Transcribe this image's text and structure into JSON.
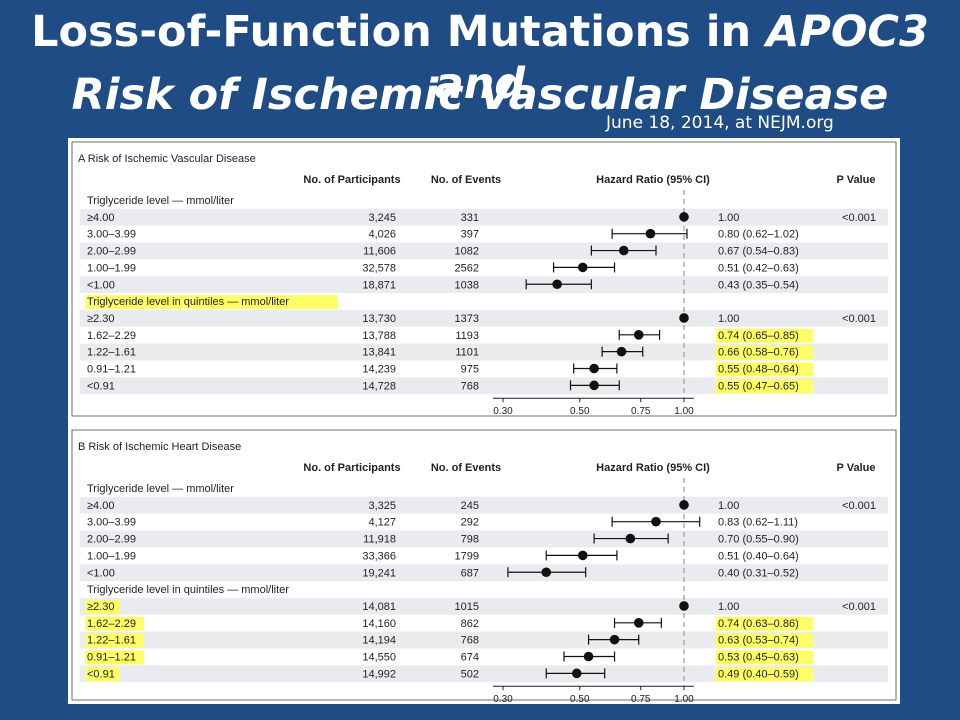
{
  "slide": {
    "title_line1_plain": "Loss-of-Function Mutations in ",
    "title_line1_italic": "APOC3 and",
    "title_line2_italic": "Risk of Ischemic Vascular Disease",
    "source": "June 18, 2014, at NEJM.org"
  },
  "colors": {
    "background": "#1f4c85",
    "highlight": "#ffff66",
    "stripe": "#e9ebee"
  },
  "chart_data": [
    {
      "type": "forest",
      "panel_title": "A  Risk of Ischemic Vascular Disease",
      "columns": {
        "participants": "No. of Participants",
        "events": "No. of Events",
        "hr": "Hazard Ratio (95% CI)",
        "p": "P Value"
      },
      "x_scale": "log",
      "xlim": [
        0.3,
        1.0
      ],
      "ticks": [
        0.3,
        0.5,
        0.75,
        1.0
      ],
      "tick_labels": [
        "0.30",
        "0.50",
        "0.75",
        "1.00"
      ],
      "groups": [
        {
          "label": "Triglyceride level — mmol/liter",
          "highlight": false,
          "rows": [
            {
              "category": "≥4.00",
              "participants": "3,245",
              "events": "331",
              "hr": 1.0,
              "lo": 1.0,
              "hi": 1.0,
              "hr_text": "1.00",
              "p": "<0.001",
              "hl_cat": false,
              "hl_hr": false
            },
            {
              "category": "3.00–3.99",
              "participants": "4,026",
              "events": "397",
              "hr": 0.8,
              "lo": 0.62,
              "hi": 1.02,
              "hr_text": "0.80 (0.62–1.02)",
              "p": "",
              "hl_cat": false,
              "hl_hr": false
            },
            {
              "category": "2.00–2.99",
              "participants": "11,606",
              "events": "1082",
              "hr": 0.67,
              "lo": 0.54,
              "hi": 0.83,
              "hr_text": "0.67 (0.54–0.83)",
              "p": "",
              "hl_cat": false,
              "hl_hr": false
            },
            {
              "category": "1.00–1.99",
              "participants": "32,578",
              "events": "2562",
              "hr": 0.51,
              "lo": 0.42,
              "hi": 0.63,
              "hr_text": "0.51 (0.42–0.63)",
              "p": "",
              "hl_cat": false,
              "hl_hr": false
            },
            {
              "category": "<1.00",
              "participants": "18,871",
              "events": "1038",
              "hr": 0.43,
              "lo": 0.35,
              "hi": 0.54,
              "hr_text": "0.43 (0.35–0.54)",
              "p": "",
              "hl_cat": false,
              "hl_hr": false
            }
          ]
        },
        {
          "label": "Triglyceride level in quintiles — mmol/liter",
          "highlight": true,
          "rows": [
            {
              "category": "≥2.30",
              "participants": "13,730",
              "events": "1373",
              "hr": 1.0,
              "lo": 1.0,
              "hi": 1.0,
              "hr_text": "1.00",
              "p": "<0.001",
              "hl_cat": false,
              "hl_hr": false
            },
            {
              "category": "1.62–2.29",
              "participants": "13,788",
              "events": "1193",
              "hr": 0.74,
              "lo": 0.65,
              "hi": 0.85,
              "hr_text": "0.74 (0.65–0.85)",
              "p": "",
              "hl_cat": false,
              "hl_hr": true
            },
            {
              "category": "1.22–1.61",
              "participants": "13,841",
              "events": "1101",
              "hr": 0.66,
              "lo": 0.58,
              "hi": 0.76,
              "hr_text": "0.66 (0.58–0.76)",
              "p": "",
              "hl_cat": false,
              "hl_hr": true
            },
            {
              "category": "0.91–1.21",
              "participants": "14,239",
              "events": "975",
              "hr": 0.55,
              "lo": 0.48,
              "hi": 0.64,
              "hr_text": "0.55 (0.48–0.64)",
              "p": "",
              "hl_cat": false,
              "hl_hr": true
            },
            {
              "category": "<0.91",
              "participants": "14,728",
              "events": "768",
              "hr": 0.55,
              "lo": 0.47,
              "hi": 0.65,
              "hr_text": "0.55 (0.47–0.65)",
              "p": "",
              "hl_cat": false,
              "hl_hr": true
            }
          ]
        }
      ]
    },
    {
      "type": "forest",
      "panel_title": "B  Risk of Ischemic Heart Disease",
      "columns": {
        "participants": "No. of Participants",
        "events": "No. of Events",
        "hr": "Hazard Ratio (95% CI)",
        "p": "P Value"
      },
      "x_scale": "log",
      "xlim": [
        0.3,
        1.0
      ],
      "ticks": [
        0.3,
        0.5,
        0.75,
        1.0
      ],
      "tick_labels": [
        "0.30",
        "0.50",
        "0.75",
        "1.00"
      ],
      "groups": [
        {
          "label": "Triglyceride level — mmol/liter",
          "highlight": false,
          "rows": [
            {
              "category": "≥4.00",
              "participants": "3,325",
              "events": "245",
              "hr": 1.0,
              "lo": 1.0,
              "hi": 1.0,
              "hr_text": "1.00",
              "p": "<0.001",
              "hl_cat": false,
              "hl_hr": false
            },
            {
              "category": "3.00–3.99",
              "participants": "4,127",
              "events": "292",
              "hr": 0.83,
              "lo": 0.62,
              "hi": 1.11,
              "hr_text": "0.83 (0.62–1.11)",
              "p": "",
              "hl_cat": false,
              "hl_hr": false
            },
            {
              "category": "2.00–2.99",
              "participants": "11,918",
              "events": "798",
              "hr": 0.7,
              "lo": 0.55,
              "hi": 0.9,
              "hr_text": "0.70 (0.55–0.90)",
              "p": "",
              "hl_cat": false,
              "hl_hr": false
            },
            {
              "category": "1.00–1.99",
              "participants": "33,366",
              "events": "1799",
              "hr": 0.51,
              "lo": 0.4,
              "hi": 0.64,
              "hr_text": "0.51 (0.40–0.64)",
              "p": "",
              "hl_cat": false,
              "hl_hr": false
            },
            {
              "category": "<1.00",
              "participants": "19,241",
              "events": "687",
              "hr": 0.4,
              "lo": 0.31,
              "hi": 0.52,
              "hr_text": "0.40 (0.31–0.52)",
              "p": "",
              "hl_cat": false,
              "hl_hr": false
            }
          ]
        },
        {
          "label": "Triglyceride level in quintiles — mmol/liter",
          "highlight": false,
          "rows": [
            {
              "category": "≥2.30",
              "participants": "14,081",
              "events": "1015",
              "hr": 1.0,
              "lo": 1.0,
              "hi": 1.0,
              "hr_text": "1.00",
              "p": "<0.001",
              "hl_cat": true,
              "hl_hr": false
            },
            {
              "category": "1.62–2.29",
              "participants": "14,160",
              "events": "862",
              "hr": 0.74,
              "lo": 0.63,
              "hi": 0.86,
              "hr_text": "0.74 (0.63–0.86)",
              "p": "",
              "hl_cat": true,
              "hl_hr": true
            },
            {
              "category": "1.22–1.61",
              "participants": "14,194",
              "events": "768",
              "hr": 0.63,
              "lo": 0.53,
              "hi": 0.74,
              "hr_text": "0.63 (0.53–0.74)",
              "p": "",
              "hl_cat": true,
              "hl_hr": true
            },
            {
              "category": "0.91–1.21",
              "participants": "14,550",
              "events": "674",
              "hr": 0.53,
              "lo": 0.45,
              "hi": 0.63,
              "hr_text": "0.53 (0.45–0.63)",
              "p": "",
              "hl_cat": true,
              "hl_hr": true
            },
            {
              "category": "<0.91",
              "participants": "14,992",
              "events": "502",
              "hr": 0.49,
              "lo": 0.4,
              "hi": 0.59,
              "hr_text": "0.49 (0.40–0.59)",
              "p": "",
              "hl_cat": true,
              "hl_hr": true
            }
          ]
        }
      ]
    }
  ]
}
